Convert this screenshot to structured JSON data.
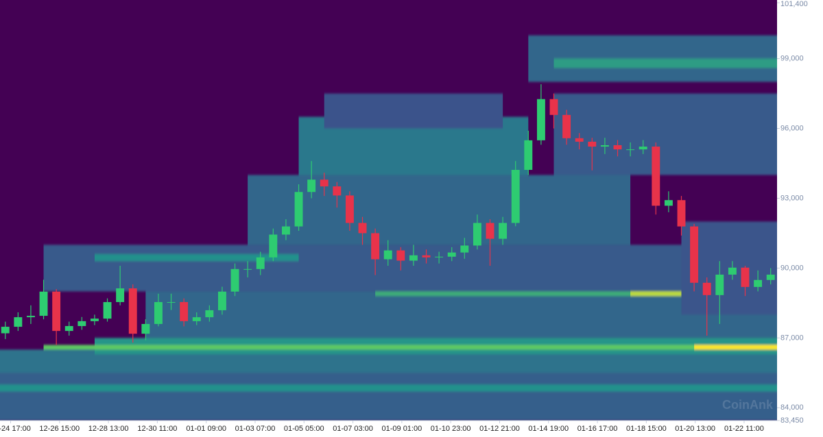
{
  "chart_data": {
    "type": "candlestick",
    "watermark": "CoinAnk",
    "colormap": "viridis",
    "up_color": "#2ecc71",
    "down_color": "#e8334a",
    "xlim": [
      "12-24 07:00",
      "01-23 18:00"
    ],
    "xticks": [
      "12-24 17:00",
      "12-26 15:00",
      "12-28 13:00",
      "12-30 11:00",
      "01-01 09:00",
      "01-03 07:00",
      "01-05 05:00",
      "01-07 03:00",
      "01-09 01:00",
      "01-10 23:00",
      "01-12 21:00",
      "01-14 19:00",
      "01-16 17:00",
      "01-18 15:00",
      "01-20 13:00",
      "01-22 11:00"
    ],
    "ylim": [
      83450,
      101400
    ],
    "yticks": [
      {
        "value": 83450,
        "label": "83,450"
      },
      {
        "value": 84000,
        "label": "84,000"
      },
      {
        "value": 87000,
        "label": "87,000"
      },
      {
        "value": 90000,
        "label": "90,000"
      },
      {
        "value": 93000,
        "label": "93,000"
      },
      {
        "value": 96000,
        "label": "96,000"
      },
      {
        "value": 99000,
        "label": "99,000"
      },
      {
        "value": 101400,
        "label": "101,400"
      }
    ],
    "x": [
      "12-24 12:00",
      "12-25 00:00",
      "12-25 12:00",
      "12-26 00:00",
      "12-26 12:00",
      "12-27 00:00",
      "12-27 12:00",
      "12-28 00:00",
      "12-28 12:00",
      "12-29 00:00",
      "12-29 12:00",
      "12-30 00:00",
      "12-30 12:00",
      "12-31 00:00",
      "12-31 12:00",
      "01-01 00:00",
      "01-01 12:00",
      "01-02 00:00",
      "01-02 12:00",
      "01-03 00:00",
      "01-03 12:00",
      "01-04 00:00",
      "01-04 12:00",
      "01-05 00:00",
      "01-05 12:00",
      "01-06 00:00",
      "01-06 12:00",
      "01-07 00:00",
      "01-07 12:00",
      "01-08 00:00",
      "01-08 12:00",
      "01-09 00:00",
      "01-09 12:00",
      "01-10 00:00",
      "01-10 12:00",
      "01-11 00:00",
      "01-11 12:00",
      "01-12 00:00",
      "01-12 12:00",
      "01-13 00:00",
      "01-13 12:00",
      "01-14 00:00",
      "01-14 12:00",
      "01-15 00:00",
      "01-15 12:00",
      "01-16 00:00",
      "01-16 12:00",
      "01-17 00:00",
      "01-17 12:00",
      "01-18 00:00",
      "01-18 12:00",
      "01-19 00:00",
      "01-19 12:00",
      "01-20 00:00",
      "01-20 12:00",
      "01-21 00:00",
      "01-21 12:00",
      "01-22 00:00",
      "01-22 12:00",
      "01-23 00:00",
      "01-23 12:00"
    ],
    "open": [
      87200,
      87480,
      87890,
      87950,
      88990,
      87300,
      87510,
      87720,
      87830,
      88540,
      89130,
      87180,
      87600,
      88540,
      88540,
      87720,
      87890,
      88190,
      88990,
      89960,
      89960,
      90460,
      91440,
      91790,
      93270,
      93800,
      93510,
      93120,
      91940,
      91500,
      90380,
      90760,
      90320,
      90550,
      90460,
      90490,
      90670,
      90970,
      91940,
      91260,
      91940,
      94220,
      95490,
      97260,
      96580,
      95580,
      95430,
      95220,
      95280,
      95100,
      95100,
      95220,
      92680,
      92920,
      91790,
      89370,
      88840,
      89720,
      90020,
      89190,
      89490
    ],
    "high": [
      87700,
      88100,
      88400,
      89500,
      89100,
      87700,
      87900,
      88000,
      88700,
      90100,
      89300,
      87800,
      88900,
      88900,
      88700,
      88100,
      88400,
      89200,
      90200,
      90300,
      90700,
      91700,
      92100,
      93600,
      94600,
      94100,
      93700,
      93300,
      92200,
      91700,
      91200,
      90900,
      91000,
      90800,
      90700,
      90900,
      91300,
      92300,
      92100,
      92200,
      94600,
      95900,
      97900,
      97500,
      96800,
      95800,
      95600,
      95600,
      95500,
      95400,
      95500,
      95400,
      93300,
      93100,
      91900,
      89600,
      90300,
      90300,
      90100,
      89900,
      90000
    ],
    "low": [
      86950,
      87300,
      87600,
      87800,
      86700,
      87100,
      87350,
      87550,
      87700,
      88400,
      86800,
      86900,
      87500,
      88200,
      87500,
      87550,
      87700,
      88000,
      88800,
      89600,
      89700,
      90300,
      91200,
      91600,
      93000,
      93100,
      92600,
      91600,
      91000,
      89700,
      90100,
      89900,
      90100,
      90200,
      90200,
      90300,
      90400,
      90800,
      90100,
      91000,
      91800,
      94000,
      95300,
      96000,
      95300,
      95100,
      94200,
      94900,
      94800,
      94800,
      94900,
      92300,
      92400,
      91400,
      89000,
      87100,
      87600,
      89500,
      88800,
      89000,
      89300
    ],
    "close": [
      87480,
      87890,
      87950,
      88990,
      87300,
      87510,
      87720,
      87830,
      88540,
      89130,
      87180,
      87600,
      88540,
      88540,
      87720,
      87890,
      88190,
      88990,
      89960,
      89960,
      90460,
      91440,
      91790,
      93270,
      93800,
      93510,
      93120,
      91940,
      91500,
      90380,
      90760,
      90320,
      90550,
      90460,
      90490,
      90670,
      90970,
      91940,
      91260,
      91940,
      94220,
      95490,
      97260,
      96580,
      95580,
      95430,
      95220,
      95280,
      95100,
      95100,
      95220,
      92680,
      92920,
      91790,
      89370,
      88840,
      89720,
      90020,
      89190,
      89490,
      89720
    ],
    "heatmap": {
      "bands": [
        {
          "start": "12-24 07:00",
          "end": "01-23 18:00",
          "price_low": 83450,
          "price_high": 86000,
          "intensity": 0.3
        },
        {
          "start": "12-24 07:00",
          "end": "01-23 18:00",
          "price_low": 85500,
          "price_high": 86500,
          "intensity": 0.38
        },
        {
          "start": "12-24 07:00",
          "end": "01-23 18:00",
          "price_low": 84700,
          "price_high": 85000,
          "intensity": 0.5
        },
        {
          "start": "12-30 00:00",
          "end": "01-23 18:00",
          "price_low": 87000,
          "price_high": 89000,
          "intensity": 0.33
        },
        {
          "start": "12-28 00:00",
          "end": "01-23 18:00",
          "price_low": 86300,
          "price_high": 87000,
          "intensity": 0.52
        },
        {
          "start": "12-26 00:00",
          "end": "01-23 18:00",
          "price_low": 86500,
          "price_high": 86700,
          "intensity": 0.75
        },
        {
          "start": "01-20 12:00",
          "end": "01-23 18:00",
          "price_low": 86500,
          "price_high": 86700,
          "intensity": 1
        },
        {
          "start": "12-26 00:00",
          "end": "01-20 00:00",
          "price_low": 89000,
          "price_high": 91000,
          "intensity": 0.28
        },
        {
          "start": "01-08 00:00",
          "end": "01-20 12:00",
          "price_low": 88800,
          "price_high": 89000,
          "intensity": 0.62
        },
        {
          "start": "01-18 00:00",
          "end": "01-20 12:00",
          "price_low": 88800,
          "price_high": 89000,
          "intensity": 0.9
        },
        {
          "start": "12-28 00:00",
          "end": "01-05 00:00",
          "price_low": 90300,
          "price_high": 90600,
          "intensity": 0.5
        },
        {
          "start": "01-03 00:00",
          "end": "01-18 00:00",
          "price_low": 91000,
          "price_high": 94000,
          "intensity": 0.33
        },
        {
          "start": "01-05 00:00",
          "end": "01-14 00:00",
          "price_low": 94000,
          "price_high": 96500,
          "intensity": 0.4
        },
        {
          "start": "01-06 00:00",
          "end": "01-13 00:00",
          "price_low": 96000,
          "price_high": 97500,
          "intensity": 0.25
        },
        {
          "start": "01-15 00:00",
          "end": "01-23 18:00",
          "price_low": 94000,
          "price_high": 97500,
          "intensity": 0.28
        },
        {
          "start": "01-14 00:00",
          "end": "01-23 18:00",
          "price_low": 98000,
          "price_high": 100000,
          "intensity": 0.33
        },
        {
          "start": "01-15 00:00",
          "end": "01-23 18:00",
          "price_low": 98600,
          "price_high": 99000,
          "intensity": 0.55
        },
        {
          "start": "01-20 00:00",
          "end": "01-23 18:00",
          "price_low": 88000,
          "price_high": 92000,
          "intensity": 0.26
        }
      ]
    }
  }
}
